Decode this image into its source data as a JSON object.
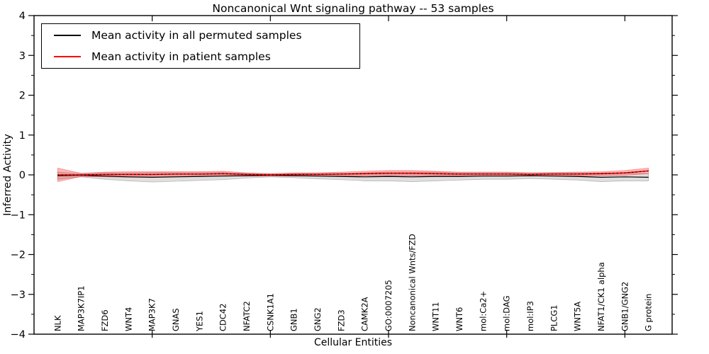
{
  "chart_data": {
    "type": "line",
    "title": "Noncanonical Wnt signaling pathway -- 53 samples",
    "xlabel": "Cellular Entities",
    "ylabel": "Inferred Activity",
    "xlim": [
      0,
      27
    ],
    "ylim": [
      -4,
      4
    ],
    "grid": false,
    "legend_position": "upper left",
    "y_major_ticks": [
      4,
      3,
      2,
      1,
      0,
      -1,
      -2,
      -3,
      -4
    ],
    "y_major_tick_labels": [
      "4",
      "3",
      "2",
      "1",
      "0",
      "−1",
      "−2",
      "−3",
      "−4"
    ],
    "y_minor_tick_step": 0.5,
    "x_major_ticks": [
      5,
      10,
      15,
      20,
      25
    ],
    "x_positions": [
      1,
      2,
      3,
      4,
      5,
      6,
      7,
      8,
      9,
      10,
      11,
      12,
      13,
      14,
      15,
      16,
      17,
      18,
      19,
      20,
      21,
      22,
      23,
      24,
      25,
      26
    ],
    "categories": [
      "NLK",
      "MAP3K7IP1",
      "FZD6",
      "WNT4",
      "MAP3K7",
      "GNAS",
      "YES1",
      "CDC42",
      "NFATC2",
      "CSNK1A1",
      "GNB1",
      "GNG2",
      "FZD3",
      "CAMK2A",
      "GO:0007205",
      "Noncanonical Wnts/FZD",
      "WNT11",
      "WNT6",
      "mol:Ca2+",
      "mol:DAG",
      "mol:IP3",
      "PLCG1",
      "WNT5A",
      "NFAT1/CK1 alpha",
      "GNB1/GNG2",
      "G protein"
    ],
    "series": [
      {
        "name": "Mean activity in all permuted samples",
        "color": "#000000",
        "style": "solid",
        "line_width": 1.2,
        "band_color": "rgba(128,128,128,0.25)",
        "band_edge": "rgba(120,120,120,0.45)",
        "values": [
          -0.02,
          -0.01,
          -0.03,
          -0.05,
          -0.06,
          -0.05,
          -0.04,
          -0.03,
          -0.02,
          -0.01,
          -0.02,
          -0.03,
          -0.04,
          -0.05,
          -0.04,
          -0.05,
          -0.04,
          -0.04,
          -0.03,
          -0.03,
          -0.02,
          -0.03,
          -0.04,
          -0.06,
          -0.05,
          -0.06
        ],
        "band_halfwidth": [
          0.09,
          0.04,
          0.08,
          0.1,
          0.12,
          0.11,
          0.1,
          0.09,
          0.06,
          0.04,
          0.05,
          0.07,
          0.08,
          0.1,
          0.11,
          0.12,
          0.11,
          0.09,
          0.08,
          0.08,
          0.07,
          0.08,
          0.09,
          0.11,
          0.1,
          0.09
        ]
      },
      {
        "name": "Mean activity in patient samples",
        "color": "#ff0000",
        "style": "solid_with_black_dots",
        "line_width": 1.6,
        "band_color": "rgba(255,0,0,0.28)",
        "band_edge": "rgba(255,60,60,0.5)",
        "values": [
          0.0,
          0.0,
          0.01,
          0.01,
          0.01,
          0.02,
          0.02,
          0.03,
          0.01,
          0.0,
          0.01,
          0.01,
          0.02,
          0.03,
          0.04,
          0.04,
          0.03,
          0.02,
          0.02,
          0.02,
          0.01,
          0.02,
          0.02,
          0.03,
          0.05,
          0.1
        ],
        "band_halfwidth": [
          0.17,
          0.04,
          0.06,
          0.07,
          0.07,
          0.06,
          0.06,
          0.06,
          0.04,
          0.03,
          0.04,
          0.04,
          0.05,
          0.06,
          0.07,
          0.07,
          0.06,
          0.05,
          0.05,
          0.05,
          0.04,
          0.04,
          0.05,
          0.05,
          0.06,
          0.07
        ]
      }
    ]
  }
}
